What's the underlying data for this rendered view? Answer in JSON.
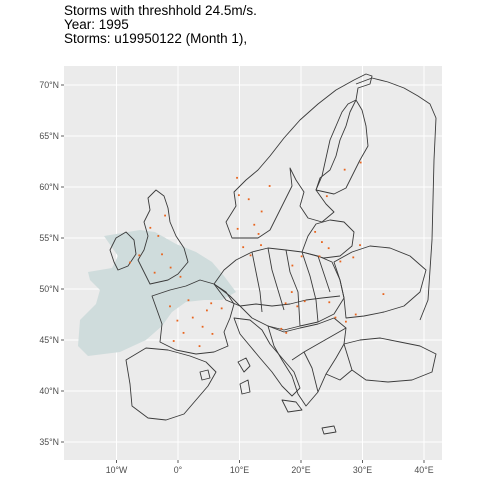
{
  "title": {
    "line1": "Storms with threshhold 24.5m/s.",
    "line2": "Year: 1995",
    "line3": "Storms: u19950122 (Month 1),"
  },
  "map": {
    "panel_background": "#ebebeb",
    "grid_color": "#ffffff",
    "coastline_color": "#3a3a3a",
    "storm_footprint_color": "#cfdcdc",
    "storm_point_color": "#e8641e",
    "lon_range": [
      -18,
      42
    ],
    "lat_range": [
      33.5,
      73
    ],
    "y_ticks": [
      {
        "value": 70,
        "label": "70°N"
      },
      {
        "value": 65,
        "label": "65°N"
      },
      {
        "value": 60,
        "label": "60°N"
      },
      {
        "value": 55,
        "label": "55°N"
      },
      {
        "value": 50,
        "label": "50°N"
      },
      {
        "value": 45,
        "label": "45°N"
      },
      {
        "value": 40,
        "label": "40°N"
      },
      {
        "value": 35,
        "label": "35°N"
      }
    ],
    "x_ticks": [
      {
        "value": -10,
        "label": "10°W"
      },
      {
        "value": 0,
        "label": "0°"
      },
      {
        "value": 10,
        "label": "10°E"
      },
      {
        "value": 20,
        "label": "20°E"
      },
      {
        "value": 30,
        "label": "30°E"
      },
      {
        "value": 40,
        "label": "40°E"
      }
    ],
    "storm_points": [
      [
        -3.2,
        55.2
      ],
      [
        -2.6,
        53.4
      ],
      [
        -1.2,
        52.1
      ],
      [
        0.4,
        51.2
      ],
      [
        -3.8,
        51.6
      ],
      [
        -4.5,
        56.0
      ],
      [
        -2.1,
        57.2
      ],
      [
        -6.3,
        53.3
      ],
      [
        -7.8,
        52.6
      ],
      [
        9.6,
        60.9
      ],
      [
        9.9,
        59.2
      ],
      [
        11.5,
        58.8
      ],
      [
        14.9,
        60.1
      ],
      [
        13.6,
        57.6
      ],
      [
        12.4,
        56.3
      ],
      [
        13.1,
        55.4
      ],
      [
        9.7,
        55.9
      ],
      [
        10.6,
        54.1
      ],
      [
        11.8,
        53.3
      ],
      [
        13.5,
        54.3
      ],
      [
        -1.3,
        48.3
      ],
      [
        1.7,
        48.9
      ],
      [
        2.4,
        47.2
      ],
      [
        4.0,
        46.3
      ],
      [
        0.9,
        45.7
      ],
      [
        -0.7,
        44.9
      ],
      [
        3.5,
        44.4
      ],
      [
        5.6,
        45.6
      ],
      [
        4.7,
        47.9
      ],
      [
        -0.1,
        46.9
      ],
      [
        5.4,
        48.6
      ],
      [
        7.1,
        48.1
      ],
      [
        18.5,
        49.7
      ],
      [
        17.5,
        48.6
      ],
      [
        19.4,
        48.3
      ],
      [
        20.6,
        48.8
      ],
      [
        16.8,
        46.1
      ],
      [
        17.6,
        45.7
      ],
      [
        22.3,
        55.6
      ],
      [
        23.4,
        54.6
      ],
      [
        24.5,
        54.0
      ],
      [
        23.0,
        53.2
      ],
      [
        26.4,
        52.7
      ],
      [
        28.5,
        53.1
      ],
      [
        29.6,
        54.3
      ],
      [
        24.6,
        48.7
      ],
      [
        25.6,
        47.2
      ],
      [
        27.3,
        46.8
      ],
      [
        28.9,
        47.5
      ],
      [
        33.4,
        49.5
      ],
      [
        24.2,
        59.1
      ],
      [
        27.1,
        61.7
      ],
      [
        29.7,
        62.4
      ],
      [
        18.6,
        52.3
      ],
      [
        20.1,
        53.2
      ]
    ]
  }
}
